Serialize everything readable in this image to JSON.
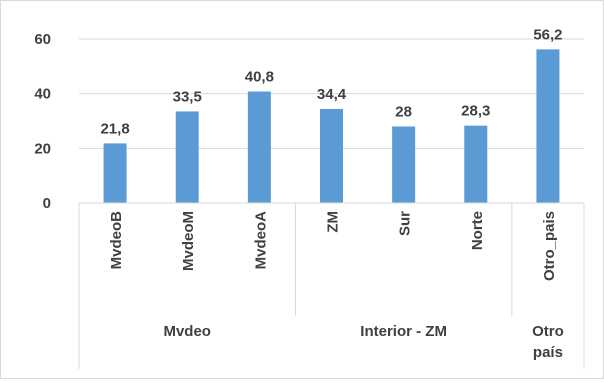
{
  "chart_data": {
    "type": "bar",
    "title": "",
    "xlabel": "",
    "ylabel": "",
    "ylim": [
      0,
      60
    ],
    "yticks": [
      0,
      20,
      40,
      60
    ],
    "grid": true,
    "legend": "none",
    "categories": [
      "MvdeoB",
      "MvdeoM",
      "MvdeoA",
      "ZM",
      "Sur",
      "Norte",
      "Otro_pais"
    ],
    "values": [
      21.8,
      33.5,
      40.8,
      34.4,
      28,
      28.3,
      56.2
    ],
    "value_labels": [
      "21,8",
      "33,5",
      "40,8",
      "34,4",
      "28",
      "28,3",
      "56,2"
    ],
    "groups": [
      {
        "label": [
          "Mvdeo"
        ],
        "count": 3
      },
      {
        "label": [
          "Interior - ZM"
        ],
        "count": 3
      },
      {
        "label": [
          "Otro",
          "país"
        ],
        "count": 1
      }
    ],
    "colors": {
      "bar": "#5b9bd5",
      "text": "#404040",
      "grid": "#d9d9d9",
      "axis": "#d9d9d9"
    }
  }
}
